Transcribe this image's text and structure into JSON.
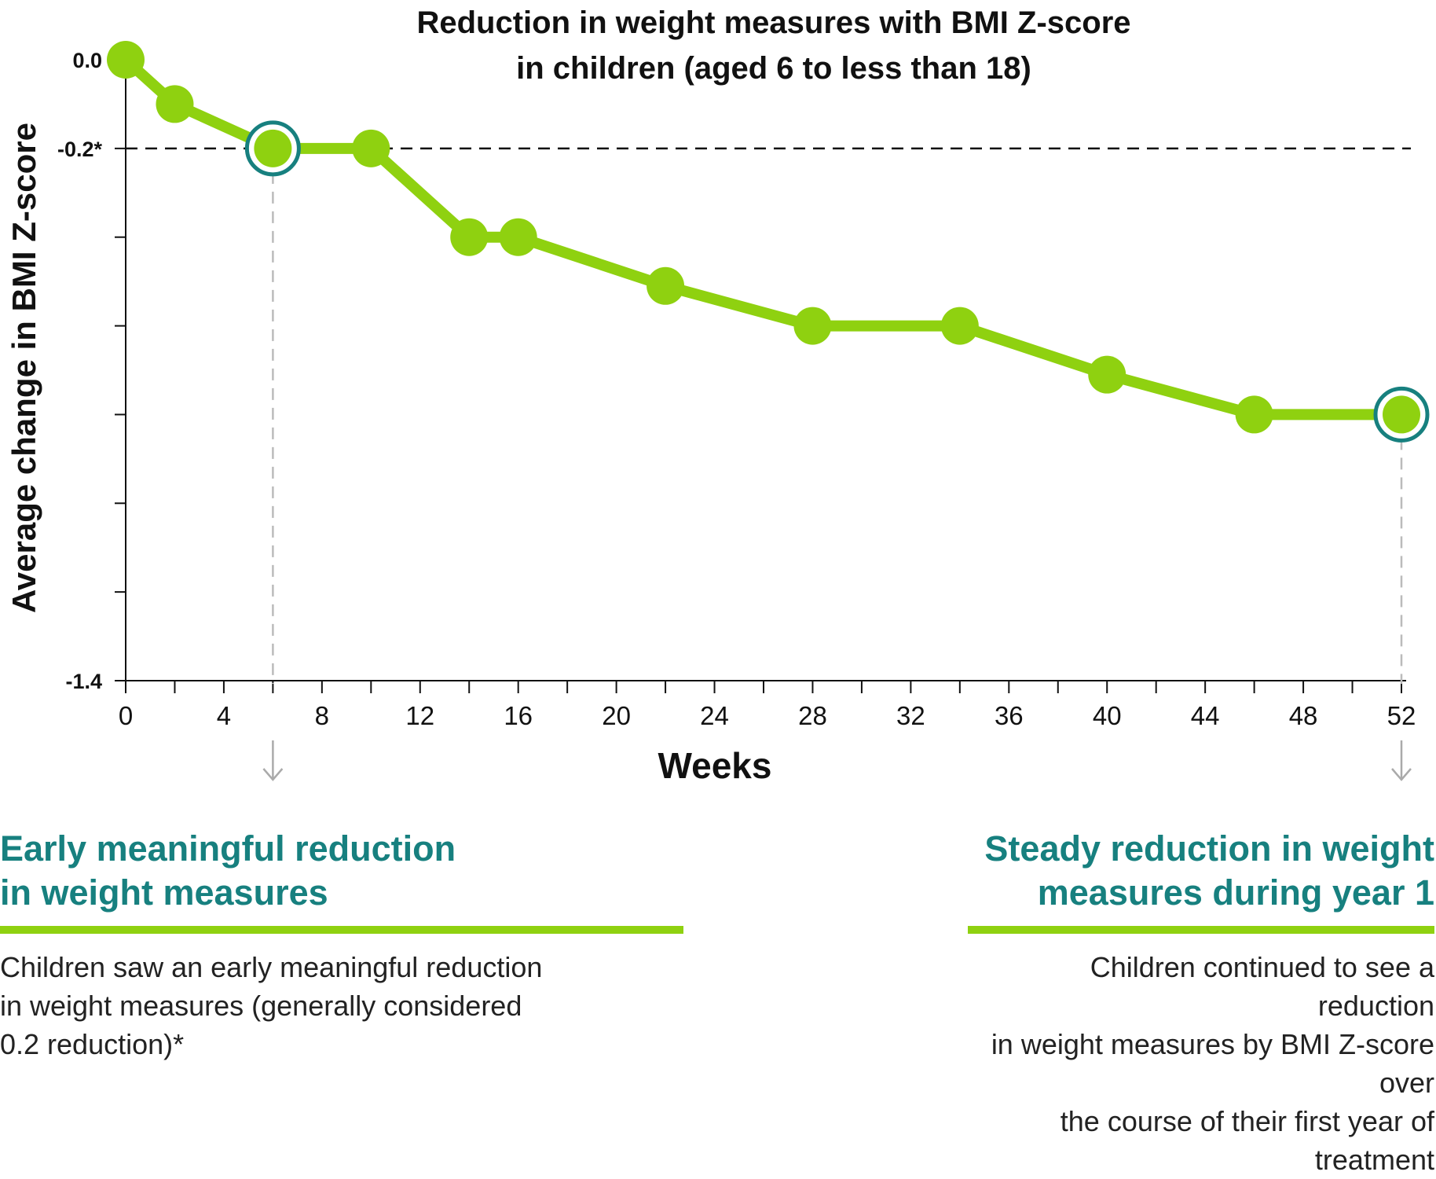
{
  "chart_data": {
    "type": "line",
    "title_line1": "Reduction in weight measures with BMI Z-score",
    "title_line2": "in children (aged 6 to less than 18)",
    "xlabel": "Weeks",
    "ylabel": "Average change in BMI Z-score",
    "xlim": [
      0,
      52
    ],
    "ylim": [
      -1.4,
      0.0
    ],
    "x_ticks": [
      0,
      4,
      8,
      12,
      16,
      20,
      24,
      28,
      32,
      36,
      40,
      44,
      48,
      52
    ],
    "x_minor_ticks": [
      2,
      6,
      10,
      14,
      18,
      22,
      26,
      30,
      34,
      38,
      42,
      46,
      50
    ],
    "y_tick_labels": [
      {
        "value": 0.0,
        "label": "0.0"
      },
      {
        "value": -0.2,
        "label": "-0.2*"
      },
      {
        "value": -1.4,
        "label": "-1.4"
      }
    ],
    "y_minor_ticks": [
      -0.4,
      -0.6,
      -0.8,
      -1.0,
      -1.2
    ],
    "reference_line": {
      "y": -0.2,
      "style": "dashed"
    },
    "highlight_points_x": [
      6,
      52
    ],
    "series": [
      {
        "color": "#8fd110",
        "x": [
          0,
          2,
          6,
          10,
          14,
          16,
          22,
          28,
          34,
          40,
          46,
          52
        ],
        "y": [
          0.0,
          -0.1,
          -0.2,
          -0.2,
          -0.4,
          -0.4,
          -0.51,
          -0.6,
          -0.6,
          -0.71,
          -0.8,
          -0.8
        ]
      }
    ]
  },
  "colors": {
    "line": "#8fd110",
    "highlight_ring": "#17807f",
    "heading": "#17807f",
    "axis": "#111111",
    "guide": "#bbbbbb"
  },
  "panels": {
    "left": {
      "heading_line1": "Early meaningful reduction",
      "heading_line2": "in weight measures",
      "body_line1": "Children saw an early meaningful reduction",
      "body_line2": "in weight measures (generally considered",
      "body_line3": "0.2 reduction)*"
    },
    "right": {
      "heading_line1": "Steady reduction in weight",
      "heading_line2": "measures during year 1",
      "body_line1": "Children continued to see a reduction",
      "body_line2": "in weight measures by BMI Z-score over",
      "body_line3": "the course of their first year of treatment"
    }
  }
}
